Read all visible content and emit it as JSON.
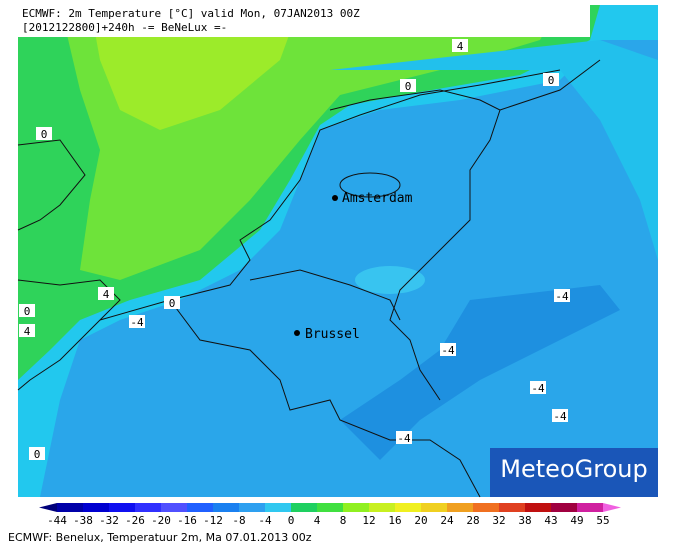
{
  "header": {
    "line1": "ECMWF: 2m Temperature [°C] valid Mon, 07JAN2013 00Z",
    "line2": "[2012122800]+240h -= BeNeLux =-"
  },
  "cities": [
    "Amsterdam",
    "Brussel"
  ],
  "contour_labels": [
    4,
    0,
    0,
    0,
    4,
    0,
    -4,
    0,
    4,
    -4,
    -4,
    -4,
    -4,
    -4,
    0
  ],
  "logo": "MeteoGroup",
  "colorbar": {
    "ticks": [
      -44,
      -38,
      -32,
      -26,
      -20,
      -16,
      -12,
      -8,
      -4,
      0,
      4,
      8,
      12,
      16,
      20,
      24,
      28,
      32,
      38,
      43,
      49,
      55
    ],
    "colors": [
      "#00007a",
      "#0000a8",
      "#0000d0",
      "#1010f0",
      "#3030ff",
      "#5050ff",
      "#2060ff",
      "#1a80f0",
      "#2ea0f0",
      "#30c8f0",
      "#1ed060",
      "#40e040",
      "#90f020",
      "#c8f020",
      "#f0f020",
      "#f0d020",
      "#f0a020",
      "#f07020",
      "#e04020",
      "#c01010",
      "#a00040",
      "#d020a0",
      "#f060e0"
    ]
  },
  "footer": "ECMWF: Benelux, Temperatuur 2m, Ma 07.01.2013 00z"
}
